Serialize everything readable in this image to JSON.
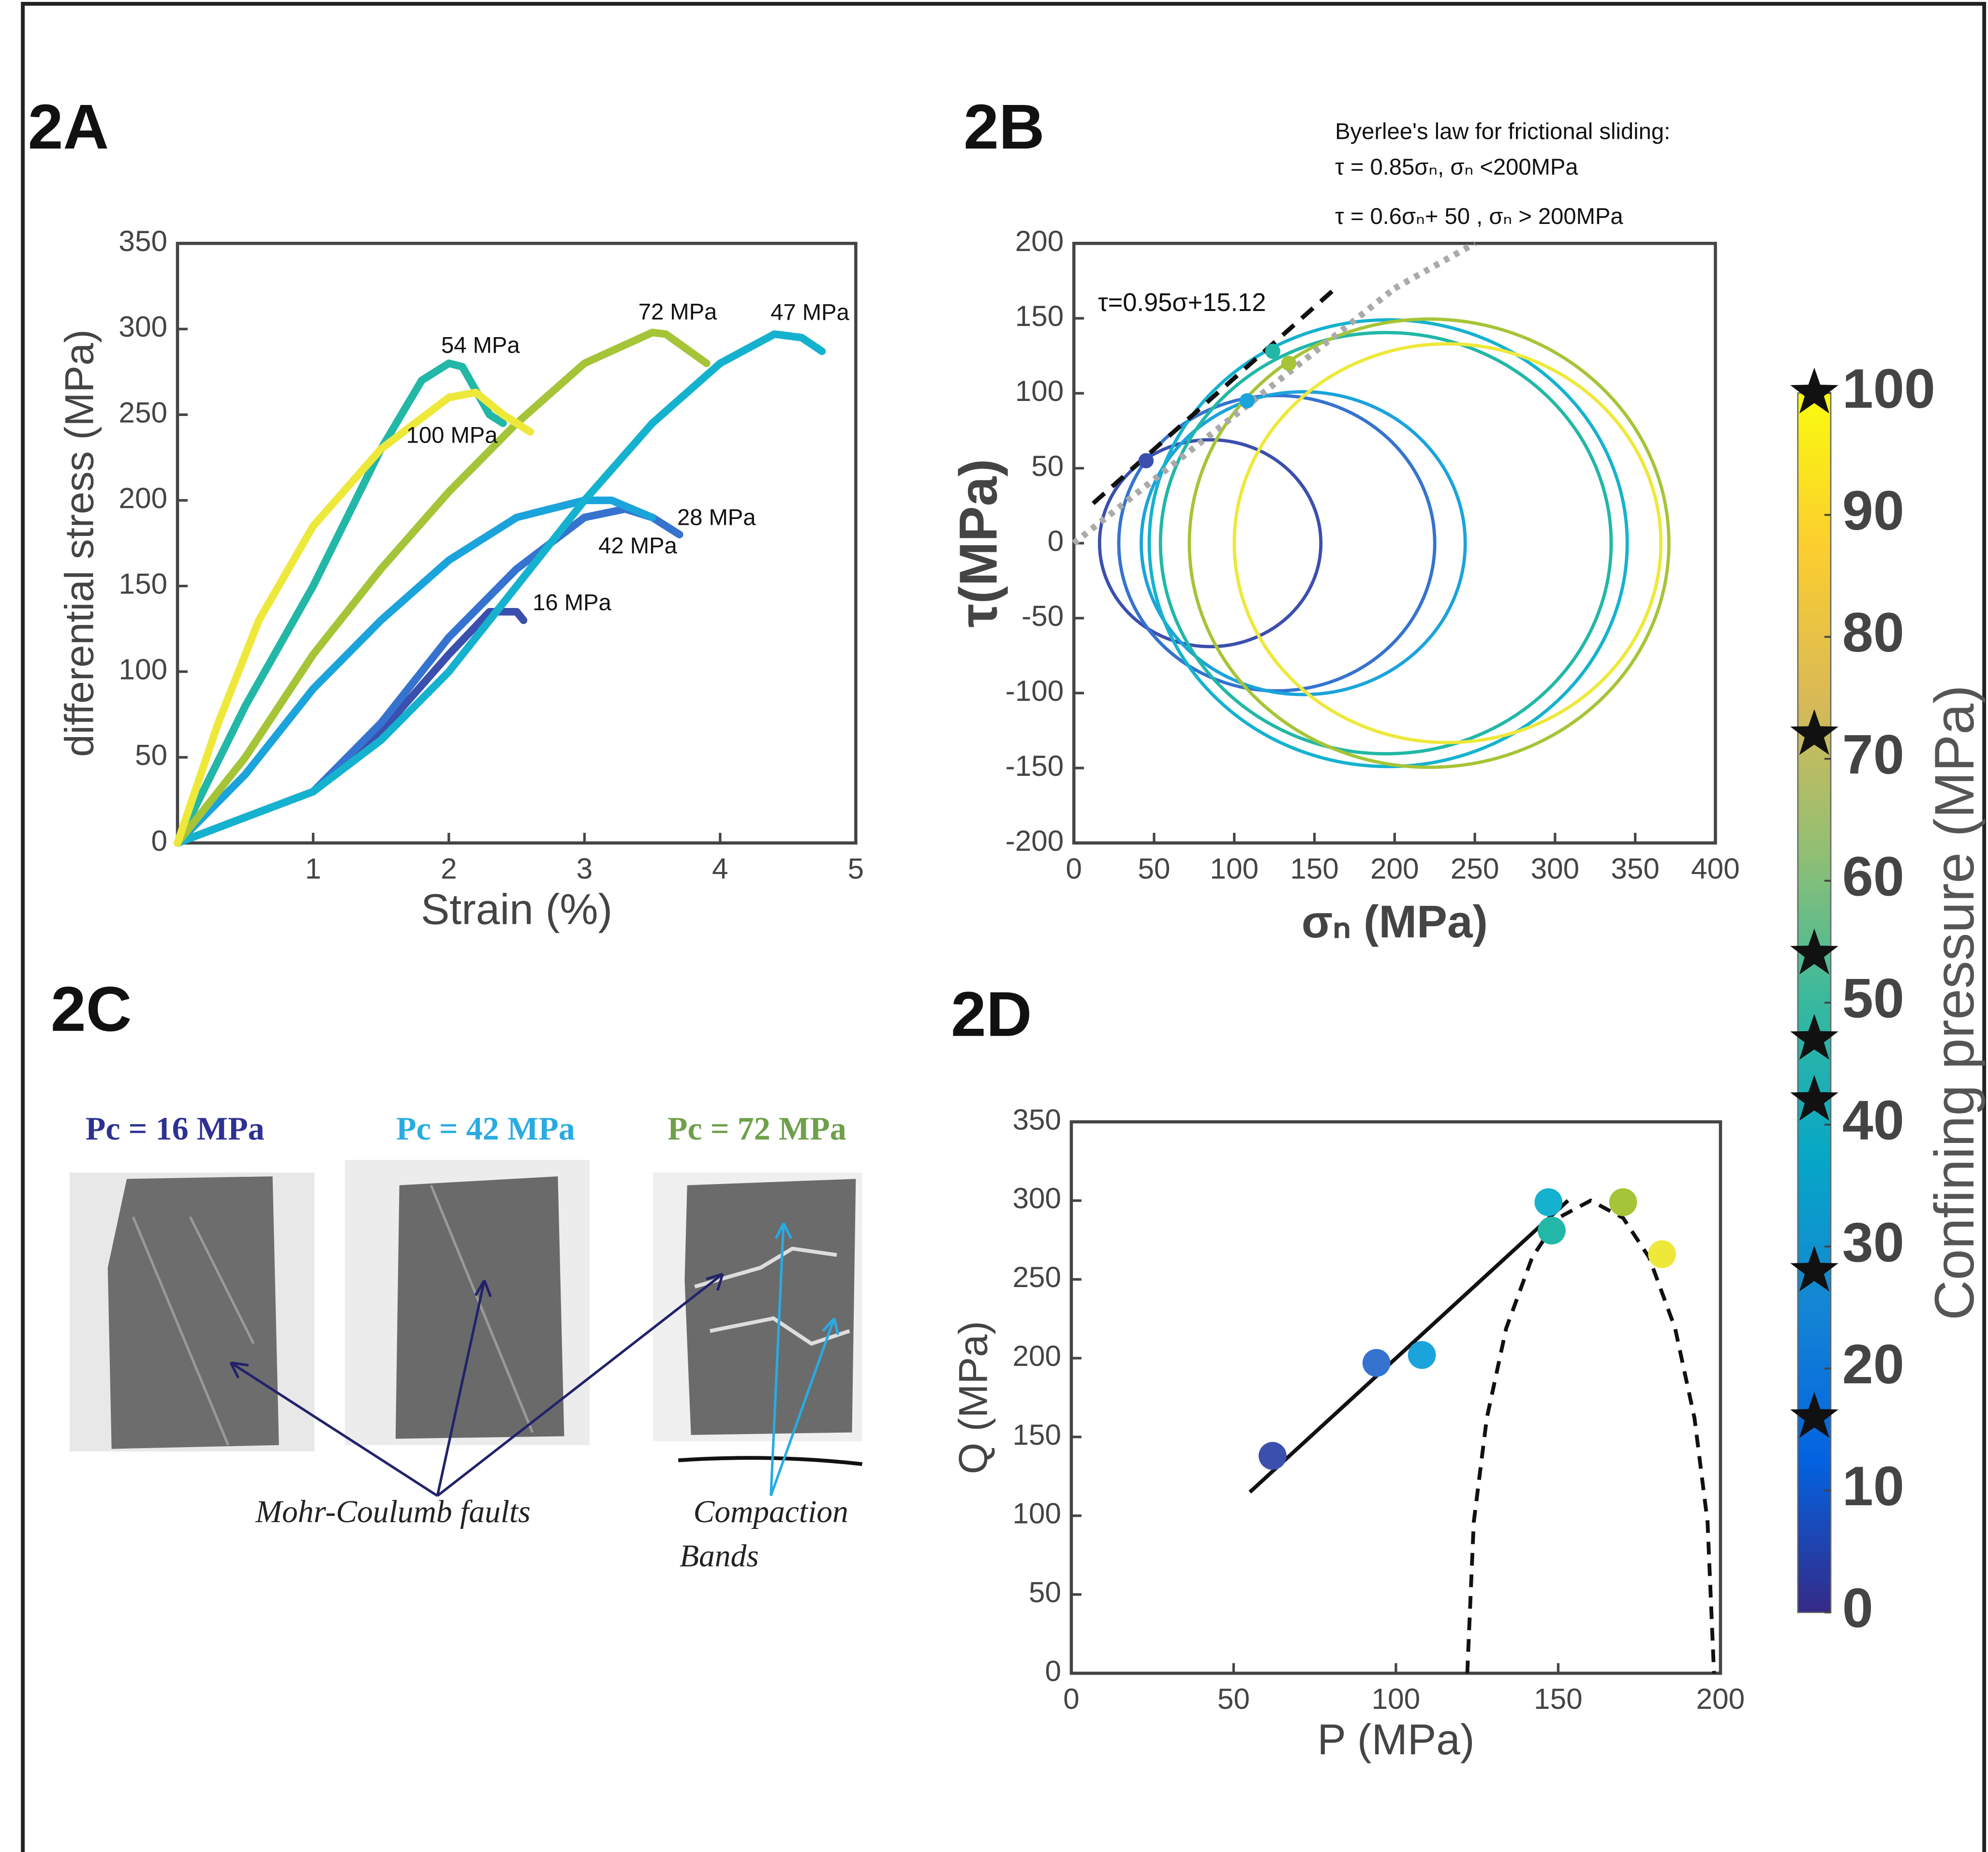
{
  "chart_data": [
    {
      "type": "line",
      "panel": "2A",
      "xlabel": "Strain (%)",
      "ylabel": "differential stress (MPa)",
      "xlim": [
        0,
        5
      ],
      "ylim": [
        0,
        350
      ],
      "xticks": [
        1,
        2,
        3,
        4,
        5
      ],
      "yticks": [
        0,
        50,
        100,
        150,
        200,
        250,
        300,
        350
      ],
      "series": [
        {
          "name": "16 MPa",
          "color": "#3b4fae",
          "x": [
            0,
            0.5,
            1,
            1.5,
            2,
            2.3,
            2.5,
            2.55
          ],
          "values": [
            0,
            15,
            30,
            65,
            110,
            135,
            135,
            130
          ]
        },
        {
          "name": "28 MPa",
          "color": "#3573cf",
          "x": [
            0,
            0.5,
            1,
            1.5,
            2,
            2.5,
            3,
            3.3,
            3.5,
            3.7
          ],
          "values": [
            0,
            15,
            30,
            70,
            120,
            160,
            190,
            195,
            190,
            180
          ]
        },
        {
          "name": "42 MPa",
          "color": "#1ba3dc",
          "x": [
            0,
            0.5,
            1,
            1.5,
            2,
            2.5,
            3,
            3.2,
            3.5
          ],
          "values": [
            0,
            40,
            90,
            130,
            165,
            190,
            200,
            200,
            190
          ]
        },
        {
          "name": "47 MPa",
          "color": "#15b2cf",
          "x": [
            0,
            0.5,
            1,
            1.5,
            2,
            2.5,
            3,
            3.5,
            4,
            4.4,
            4.6,
            4.75
          ],
          "values": [
            0,
            15,
            30,
            60,
            100,
            150,
            200,
            245,
            280,
            297,
            295,
            287
          ]
        },
        {
          "name": "54 MPa",
          "color": "#22b7a6",
          "x": [
            0,
            0.5,
            1,
            1.5,
            1.8,
            2,
            2.1,
            2.3,
            2.4
          ],
          "values": [
            0,
            80,
            150,
            230,
            270,
            280,
            278,
            250,
            245
          ]
        },
        {
          "name": "72 MPa",
          "color": "#a6c437",
          "x": [
            0,
            0.5,
            1,
            1.5,
            2,
            2.5,
            3,
            3.5,
            3.6,
            3.9
          ],
          "values": [
            0,
            50,
            110,
            160,
            205,
            245,
            280,
            298,
            297,
            280
          ]
        },
        {
          "name": "100 MPa",
          "color": "#eee83a",
          "x": [
            0,
            0.3,
            0.6,
            1,
            1.5,
            2,
            2.2,
            2.4,
            2.6
          ],
          "values": [
            0,
            70,
            130,
            185,
            230,
            260,
            263,
            250,
            240
          ]
        }
      ]
    },
    {
      "type": "mohr",
      "panel": "2B",
      "xlabel": "σₙ (MPa)",
      "ylabel": "τ(MPa)",
      "xlim": [
        0,
        400
      ],
      "ylim": [
        -200,
        200
      ],
      "xticks": [
        0,
        50,
        100,
        150,
        200,
        250,
        300,
        350,
        400
      ],
      "yticks": [
        -200,
        -150,
        -100,
        -50,
        0,
        50,
        100,
        150,
        200
      ],
      "circles": [
        {
          "color": "#3b4fae",
          "center": 85,
          "radius": 69
        },
        {
          "color": "#3573cf",
          "center": 126.5,
          "radius": 98.5
        },
        {
          "color": "#1ba3dc",
          "center": 143,
          "radius": 101
        },
        {
          "color": "#15b2cf",
          "center": 196,
          "radius": 149
        },
        {
          "color": "#22b7a6",
          "center": 194.5,
          "radius": 140.5
        },
        {
          "color": "#a6c437",
          "center": 221.5,
          "radius": 149.5
        },
        {
          "color": "#eee83a",
          "center": 233,
          "radius": 133
        }
      ],
      "points": {
        "x": [
          45,
          108,
          124,
          134
        ],
        "values": [
          55,
          95,
          128,
          120
        ],
        "colors": [
          "#3b4fae",
          "#1ba3dc",
          "#22b7a6",
          "#a6c437"
        ]
      },
      "fit": {
        "label": "τ=0.95σ+15.12",
        "slope": 0.95,
        "intercept": 15.12,
        "xrange": [
          12,
          165
        ]
      },
      "byerlee": {
        "title": "Byerlee's law for frictional sliding:",
        "laws": [
          {
            "label": "τ = 0.85σₙ, σₙ <200MPa",
            "slope": 0.85,
            "intercept": 0,
            "xrange": [
              0,
              200
            ]
          },
          {
            "label": "τ = 0.6σₙ+ 50 , σₙ > 200MPa",
            "slope": 0.6,
            "intercept": 50,
            "xrange": [
              200,
              250
            ]
          }
        ]
      }
    },
    {
      "type": "scatter",
      "panel": "2D",
      "xlabel": "P (MPa)",
      "ylabel": "Q (MPa)",
      "xlim": [
        0,
        200
      ],
      "ylim": [
        0,
        350
      ],
      "xticks": [
        0,
        50,
        100,
        150,
        200
      ],
      "yticks": [
        0,
        50,
        100,
        150,
        200,
        250,
        300,
        350
      ],
      "x": [
        62,
        94,
        108,
        147,
        148,
        170,
        182
      ],
      "values": [
        138,
        197,
        202,
        299,
        281,
        299,
        266
      ],
      "colors": [
        "#3b4fae",
        "#3573cf",
        "#1ba3dc",
        "#15b2cf",
        "#22b7a6",
        "#a6c437",
        "#eee83a"
      ],
      "fit": {
        "x": [
          55,
          153
        ],
        "values": [
          115,
          300
        ]
      },
      "envelope": {
        "x": [
          122,
          124,
          128,
          134,
          142,
          150,
          160,
          170,
          178,
          186,
          192,
          196,
          198
        ],
        "values": [
          0,
          96,
          162,
          219,
          264,
          289,
          300,
          289,
          264,
          219,
          162,
          96,
          0
        ]
      }
    },
    {
      "type": "colorbar",
      "label": "Confining pressure (MPa)",
      "lim": [
        0,
        100
      ],
      "ticks": [
        0,
        10,
        20,
        30,
        40,
        50,
        60,
        70,
        80,
        90,
        100
      ],
      "markers": [
        16,
        28,
        42,
        47,
        54,
        72,
        100
      ],
      "colors": [
        "#352a87",
        "#0363e1",
        "#1485d4",
        "#06a7c6",
        "#38b99e",
        "#92bf73",
        "#d9ba56",
        "#fcce2e",
        "#f9fb0e"
      ]
    }
  ],
  "panel_2C": {
    "label": "2C",
    "captions": [
      "Pc = 16 MPa",
      "Pc = 42 MPa",
      "Pc = 72 MPa"
    ],
    "annotations": {
      "faults": "Mohr-Coulumb faults",
      "bands": [
        "Compaction",
        "Bands"
      ]
    }
  }
}
